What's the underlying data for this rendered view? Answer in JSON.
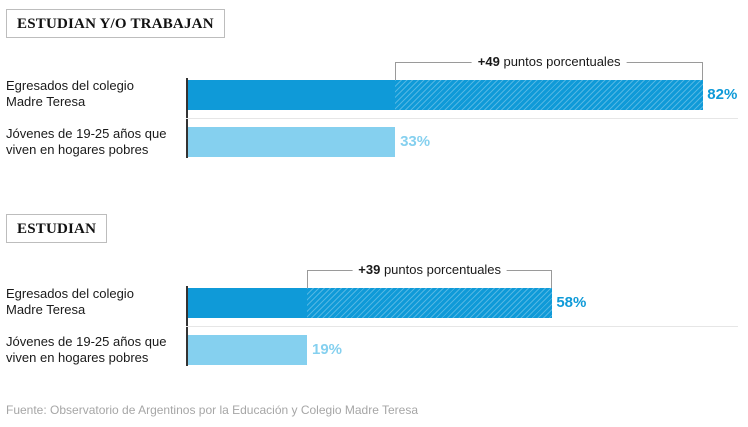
{
  "chart_data": [
    {
      "type": "bar",
      "orientation": "horizontal",
      "title": "ESTUDIAN Y/O TRABAJAN",
      "categories": [
        "Egresados del colegio Madre Teresa",
        "Jóvenes de 19-25 años que viven en hogares pobres"
      ],
      "values": [
        82,
        33
      ],
      "value_labels": [
        "82%",
        "33%"
      ],
      "difference": {
        "value": "+49",
        "text": "puntos porcentuales"
      },
      "xlim": [
        0,
        100
      ],
      "colors": [
        "#0f9ad8",
        "#85d0ef"
      ]
    },
    {
      "type": "bar",
      "orientation": "horizontal",
      "title": "ESTUDIAN",
      "categories": [
        "Egresados del colegio Madre Teresa",
        "Jóvenes de 19-25 años que viven en hogares pobres"
      ],
      "values": [
        58,
        19
      ],
      "value_labels": [
        "58%",
        "19%"
      ],
      "difference": {
        "value": "+39",
        "text": "puntos porcentuales"
      },
      "xlim": [
        0,
        100
      ],
      "colors": [
        "#0f9ad8",
        "#85d0ef"
      ]
    }
  ],
  "labels": {
    "row1_line1": "Egresados del colegio",
    "row1_line2": "Madre Teresa",
    "row2_line1": "Jóvenes de 19-25 años que",
    "row2_line2": "viven en hogares pobres"
  },
  "source": "Fuente: Observatorio de Argentinos por la Educación y Colegio Madre Teresa"
}
